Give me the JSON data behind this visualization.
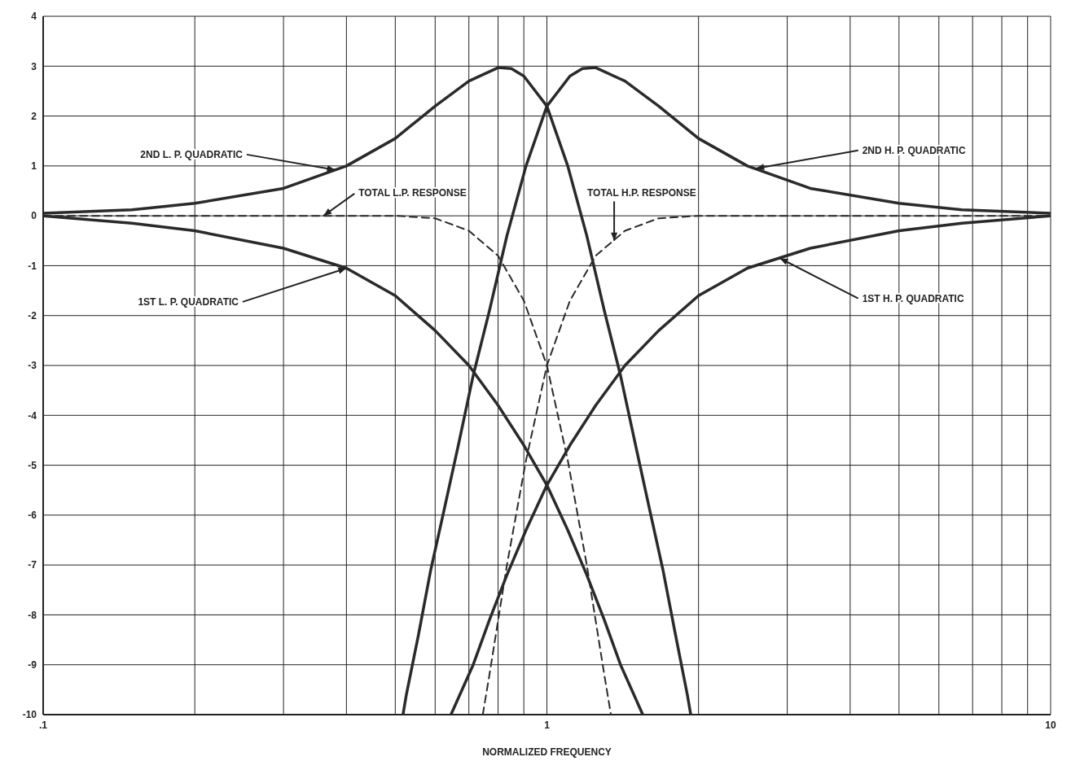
{
  "chart_data": {
    "type": "line",
    "xlabel": "NORMALIZED FREQUENCY",
    "log": "x",
    "xlim": [
      0.1,
      10
    ],
    "ylim": [
      -10,
      4
    ],
    "xticks": [
      {
        "value": 0.1,
        "label": ".1"
      },
      {
        "value": 0.2,
        "label": null
      },
      {
        "value": 0.3,
        "label": null
      },
      {
        "value": 0.4,
        "label": null
      },
      {
        "value": 0.5,
        "label": null
      },
      {
        "value": 0.6,
        "label": null
      },
      {
        "value": 0.7,
        "label": null
      },
      {
        "value": 0.8,
        "label": null
      },
      {
        "value": 0.9,
        "label": null
      },
      1,
      {
        "value": 2,
        "label": null
      },
      {
        "value": 3,
        "label": null
      },
      {
        "value": 4,
        "label": null
      },
      {
        "value": 5,
        "label": null
      },
      {
        "value": 6,
        "label": null
      },
      {
        "value": 7,
        "label": null
      },
      {
        "value": 8,
        "label": null
      },
      {
        "value": 9,
        "label": null
      },
      10
    ],
    "yticks": [
      -10,
      -9,
      -8,
      -7,
      -6,
      -5,
      -4,
      -3,
      -2,
      -1,
      0,
      1,
      2,
      3,
      4
    ],
    "grid": true,
    "legend": false,
    "marker": "none",
    "series": [
      {
        "color": "#2a2a2a",
        "line_style": "solid",
        "x": [
          0.1,
          0.15,
          0.2,
          0.3,
          0.4,
          0.5,
          0.6,
          0.7,
          0.8,
          0.85,
          0.9,
          1.0,
          1.1,
          1.2,
          1.3,
          1.4,
          1.5,
          1.6,
          1.7,
          1.8,
          1.9,
          1.93
        ],
        "values": [
          0.05,
          0.12,
          0.25,
          0.55,
          1.0,
          1.55,
          2.2,
          2.7,
          2.97,
          2.95,
          2.8,
          2.2,
          1.0,
          -0.4,
          -1.9,
          -3.2,
          -4.6,
          -5.9,
          -7.1,
          -8.4,
          -9.6,
          -10
        ]
      },
      {
        "color": "#2a2a2a",
        "line_style": "solid",
        "x": [
          0.518,
          0.526,
          0.556,
          0.588,
          0.625,
          0.667,
          0.714,
          0.769,
          0.833,
          0.909,
          1.0,
          1.111,
          1.176,
          1.25,
          1.429,
          1.667,
          2.0,
          2.5,
          3.333,
          5.0,
          6.667,
          10.0
        ],
        "values": [
          -10,
          -9.6,
          -8.4,
          -7.1,
          -5.9,
          -4.6,
          -3.2,
          -1.9,
          -0.4,
          1.0,
          2.2,
          2.8,
          2.95,
          2.97,
          2.7,
          2.2,
          1.55,
          1.0,
          0.55,
          0.25,
          0.12,
          0.05
        ]
      },
      {
        "color": "#2a2a2a",
        "line_style": "solid",
        "x": [
          0.1,
          0.15,
          0.2,
          0.3,
          0.4,
          0.5,
          0.6,
          0.7,
          0.8,
          0.9,
          1.0,
          1.1,
          1.2,
          1.3,
          1.4,
          1.55
        ],
        "values": [
          0,
          -0.15,
          -0.3,
          -0.65,
          -1.05,
          -1.6,
          -2.3,
          -3.0,
          -3.8,
          -4.6,
          -5.4,
          -6.3,
          -7.2,
          -8.1,
          -9.0,
          -10
        ]
      },
      {
        "color": "#2a2a2a",
        "line_style": "solid",
        "x": [
          0.645,
          0.714,
          0.769,
          0.833,
          0.909,
          1.0,
          1.111,
          1.25,
          1.429,
          1.667,
          2.0,
          2.5,
          3.333,
          5.0,
          6.667,
          10.0
        ],
        "values": [
          -10,
          -9.0,
          -8.1,
          -7.2,
          -6.3,
          -5.4,
          -4.6,
          -3.8,
          -3.0,
          -2.3,
          -1.6,
          -1.05,
          -0.65,
          -0.3,
          -0.15,
          0
        ]
      },
      {
        "color": "#2a2a2a",
        "line_style": "dashed",
        "x": [
          0.1,
          0.5,
          0.6,
          0.7,
          0.8,
          0.9,
          1.0,
          1.1,
          1.2,
          1.3,
          1.34
        ],
        "values": [
          0,
          0,
          -0.05,
          -0.3,
          -0.8,
          -1.7,
          -3.0,
          -4.9,
          -7.0,
          -9.2,
          -10
        ]
      },
      {
        "color": "#2a2a2a",
        "line_style": "dashed",
        "x": [
          0.746,
          0.769,
          0.833,
          0.909,
          1.0,
          1.111,
          1.25,
          1.429,
          1.667,
          2.0,
          10.0
        ],
        "values": [
          -10,
          -9.2,
          -7.0,
          -4.9,
          -3.0,
          -1.7,
          -0.8,
          -0.3,
          -0.05,
          0,
          0
        ]
      }
    ],
    "annotations": [
      {
        "text": "2ND L. P. QUADRATIC",
        "x": 0.38,
        "y": 0.92
      },
      {
        "text": "TOTAL L.P. RESPONSE",
        "x": 0.36,
        "y": 0
      },
      {
        "text": "1ST L. P. QUADRATIC",
        "x": 0.4,
        "y": -1.05
      },
      {
        "text": "2ND H. P. QUADRATIC",
        "x": 2.6,
        "y": 0.95
      },
      {
        "text": "TOTAL H.P. RESPONSE",
        "x": 1.36,
        "y": -0.5
      },
      {
        "text": "1ST H. P. QUADRATIC",
        "x": 2.9,
        "y": -0.85
      }
    ]
  }
}
